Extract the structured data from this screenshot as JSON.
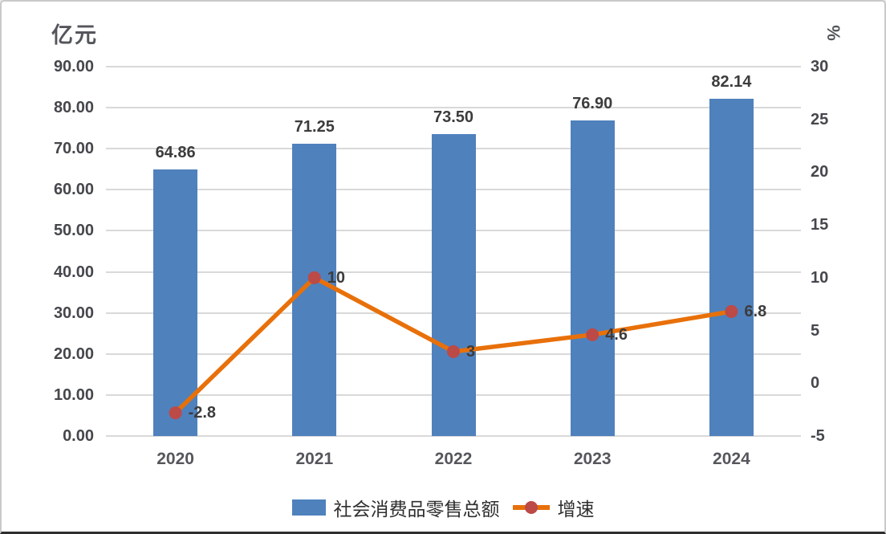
{
  "chart_data": {
    "type": "combo",
    "title": "",
    "categories": [
      "2020",
      "2021",
      "2022",
      "2023",
      "2024"
    ],
    "series": [
      {
        "name": "社会消费品零售总额",
        "type": "bar",
        "axis": "left",
        "values": [
          64.86,
          71.25,
          73.5,
          76.9,
          82.14
        ],
        "labels": [
          "64.86",
          "71.25",
          "73.50",
          "76.90",
          "82.14"
        ],
        "color": "#4f81bd"
      },
      {
        "name": "增速",
        "type": "line",
        "axis": "right",
        "values": [
          -2.8,
          10,
          3,
          4.6,
          6.8
        ],
        "labels": [
          "-2.8",
          "10",
          "3",
          "4.6",
          "6.8"
        ],
        "color": "#e8700a",
        "marker_color": "#bc4a47"
      }
    ],
    "left_axis": {
      "title": "亿元",
      "min": 0,
      "max": 90,
      "tick_labels": [
        "90.00",
        "80.00",
        "70.00",
        "60.00",
        "50.00",
        "40.00",
        "30.00",
        "20.00",
        "10.00",
        "0.00"
      ]
    },
    "right_axis": {
      "title": "%",
      "min": -5,
      "max": 30,
      "tick_labels": [
        "30",
        "25",
        "20",
        "15",
        "10",
        "5",
        "0",
        "-5"
      ]
    },
    "grid": true,
    "gridline_color": "#d9d9d9",
    "legend_position": "bottom"
  }
}
